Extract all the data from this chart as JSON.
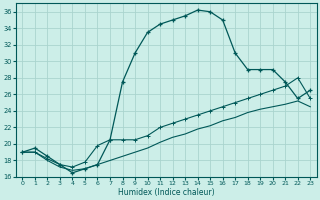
{
  "xlabel": "Humidex (Indice chaleur)",
  "bg_color": "#cceee8",
  "grid_color": "#aad4ce",
  "line_color": "#005858",
  "xlim": [
    -0.5,
    23.5
  ],
  "ylim": [
    16,
    37
  ],
  "yticks": [
    16,
    18,
    20,
    22,
    24,
    26,
    28,
    30,
    32,
    34,
    36
  ],
  "xticks": [
    0,
    1,
    2,
    3,
    4,
    5,
    6,
    7,
    8,
    9,
    10,
    11,
    12,
    13,
    14,
    15,
    16,
    17,
    18,
    19,
    20,
    21,
    22,
    23
  ],
  "curve1_x": [
    0,
    1,
    2,
    3,
    4,
    5,
    6,
    7,
    8,
    9,
    10,
    11,
    12,
    13,
    14,
    15,
    16,
    17,
    18,
    19,
    20,
    21,
    22,
    23
  ],
  "curve1_y": [
    19.0,
    19.5,
    18.5,
    17.5,
    16.5,
    17.0,
    17.5,
    20.5,
    27.5,
    31.0,
    33.5,
    34.5,
    35.0,
    35.5,
    36.2,
    36.0,
    35.0,
    31.0,
    29.0,
    29.0,
    29.0,
    27.5,
    25.5,
    26.5
  ],
  "curve2_x": [
    0,
    1,
    2,
    3,
    4,
    5,
    6,
    7,
    8,
    9,
    10,
    11,
    12,
    13,
    14,
    15,
    16,
    17,
    18,
    19,
    20,
    21,
    22,
    23
  ],
  "curve2_y": [
    19.0,
    19.0,
    18.2,
    17.5,
    17.2,
    17.8,
    19.8,
    20.5,
    20.5,
    20.5,
    21.0,
    22.0,
    22.5,
    23.0,
    23.5,
    24.0,
    24.5,
    25.0,
    25.5,
    26.0,
    26.5,
    27.0,
    28.0,
    25.5
  ],
  "curve3_x": [
    0,
    1,
    2,
    3,
    4,
    5,
    6,
    7,
    8,
    9,
    10,
    11,
    12,
    13,
    14,
    15,
    16,
    17,
    18,
    19,
    20,
    21,
    22,
    23
  ],
  "curve3_y": [
    19.0,
    19.0,
    18.0,
    17.2,
    16.8,
    17.0,
    17.5,
    18.0,
    18.5,
    19.0,
    19.5,
    20.2,
    20.8,
    21.2,
    21.8,
    22.2,
    22.8,
    23.2,
    23.8,
    24.2,
    24.5,
    24.8,
    25.2,
    24.5
  ]
}
